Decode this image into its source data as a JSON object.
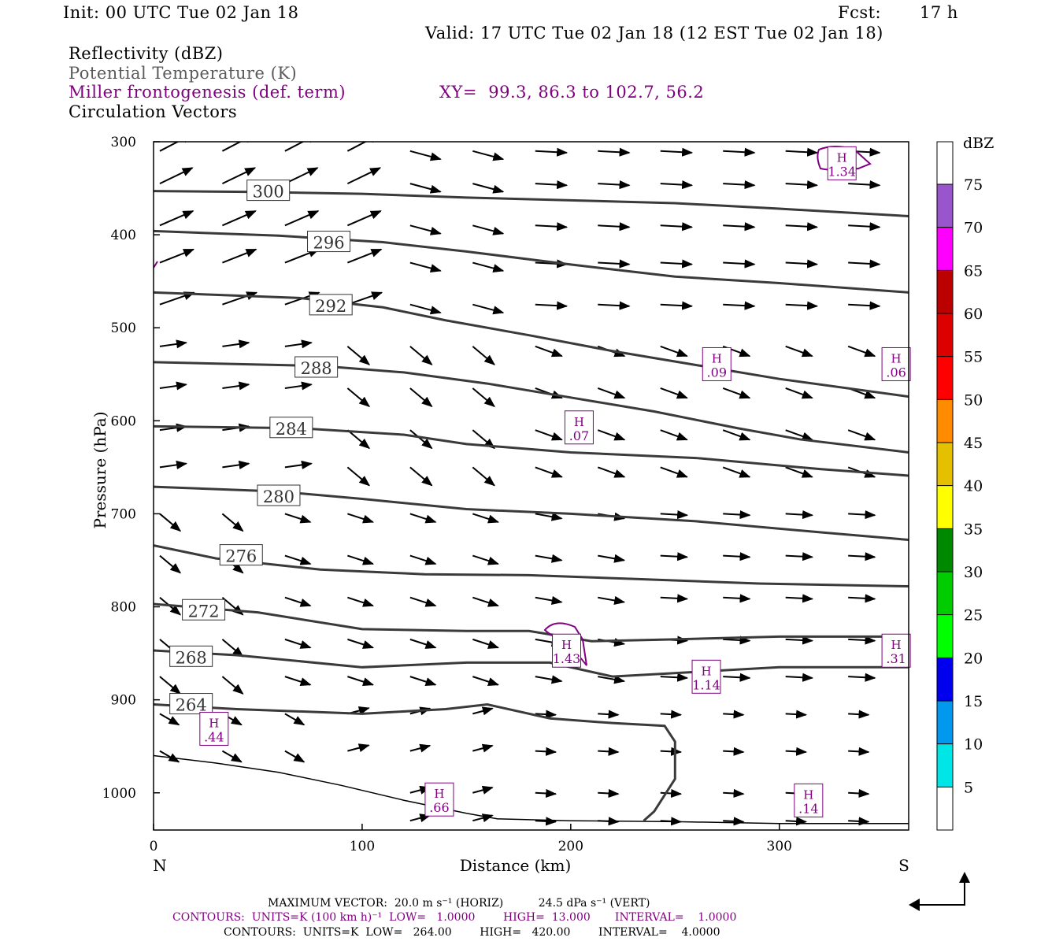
{
  "header": {
    "init": "Init: 00 UTC Tue 02 Jan 18",
    "fcst_label": "Fcst:",
    "fcst_value": "17 h",
    "valid": "Valid: 17 UTC Tue 02 Jan 18 (12 EST Tue 02 Jan 18)"
  },
  "fields": {
    "reflectivity": "Reflectivity (dBZ)",
    "theta": "Potential Temperature (K)",
    "miller": "Miller frontogenesis (def. term)",
    "xy": "XY=  99.3, 86.3 to 102.7, 56.2",
    "vectors": "Circulation Vectors"
  },
  "colors": {
    "theta_contour": "#3a3a3a",
    "frontogenesis": "#800080",
    "vectors": "#000000"
  },
  "chart_data": {
    "type": "line",
    "title": "",
    "xlabel": "Distance (km)",
    "ylabel": "Pressure (hPa)",
    "xlim": [
      0,
      362
    ],
    "ylim": [
      1040,
      300
    ],
    "x_ticks": [
      0,
      100,
      200,
      300
    ],
    "x_tick_labels": [
      "0",
      "100",
      "200",
      "300"
    ],
    "y_ticks": [
      300,
      400,
      500,
      600,
      700,
      800,
      900,
      1000
    ],
    "y_tick_labels": [
      "300",
      "400",
      "500",
      "600",
      "700",
      "800",
      "900",
      "1000"
    ],
    "left_end_label": "N",
    "right_end_label": "S",
    "theta_contours": [
      {
        "name": "300",
        "label": "300",
        "label_at": [
          55,
          353
        ],
        "points": [
          [
            0,
            353
          ],
          [
            50,
            354
          ],
          [
            100,
            356
          ],
          [
            150,
            360
          ],
          [
            200,
            363
          ],
          [
            250,
            366
          ],
          [
            300,
            372
          ],
          [
            362,
            380
          ]
        ]
      },
      {
        "name": "296",
        "label": "296",
        "label_at": [
          84,
          408
        ],
        "points": [
          [
            0,
            396
          ],
          [
            60,
            401
          ],
          [
            110,
            408
          ],
          [
            150,
            418
          ],
          [
            200,
            432
          ],
          [
            250,
            445
          ],
          [
            300,
            452
          ],
          [
            362,
            462
          ]
        ]
      },
      {
        "name": "292",
        "label": "292",
        "label_at": [
          85,
          476
        ],
        "points": [
          [
            0,
            462
          ],
          [
            70,
            468
          ],
          [
            110,
            478
          ],
          [
            140,
            492
          ],
          [
            180,
            508
          ],
          [
            220,
            525
          ],
          [
            260,
            540
          ],
          [
            300,
            555
          ],
          [
            362,
            574
          ]
        ]
      },
      {
        "name": "288",
        "label": "288",
        "label_at": [
          78,
          543
        ],
        "points": [
          [
            0,
            537
          ],
          [
            80,
            541
          ],
          [
            120,
            548
          ],
          [
            160,
            560
          ],
          [
            200,
            575
          ],
          [
            240,
            590
          ],
          [
            280,
            608
          ],
          [
            310,
            620
          ],
          [
            362,
            634
          ]
        ]
      },
      {
        "name": "284",
        "label": "284",
        "label_at": [
          66,
          608
        ],
        "points": [
          [
            0,
            606
          ],
          [
            70,
            608
          ],
          [
            120,
            615
          ],
          [
            150,
            625
          ],
          [
            200,
            634
          ],
          [
            260,
            640
          ],
          [
            320,
            652
          ],
          [
            362,
            659
          ]
        ]
      },
      {
        "name": "280",
        "label": "280",
        "label_at": [
          60,
          681
        ],
        "points": [
          [
            0,
            671
          ],
          [
            60,
            676
          ],
          [
            100,
            684
          ],
          [
            150,
            695
          ],
          [
            200,
            700
          ],
          [
            260,
            708
          ],
          [
            320,
            720
          ],
          [
            362,
            728
          ]
        ]
      },
      {
        "name": "276",
        "label": "276",
        "label_at": [
          42,
          745
        ],
        "points": [
          [
            0,
            734
          ],
          [
            30,
            748
          ],
          [
            80,
            760
          ],
          [
            130,
            765
          ],
          [
            180,
            766
          ],
          [
            230,
            770
          ],
          [
            290,
            775
          ],
          [
            362,
            778
          ]
        ]
      },
      {
        "name": "272",
        "label": "272",
        "label_at": [
          24,
          804
        ],
        "points": [
          [
            0,
            797
          ],
          [
            50,
            806
          ],
          [
            100,
            824
          ],
          [
            150,
            826
          ],
          [
            180,
            826
          ],
          [
            210,
            837
          ],
          [
            250,
            835
          ],
          [
            300,
            832
          ],
          [
            362,
            832
          ]
        ]
      },
      {
        "name": "268",
        "label": "268",
        "label_at": [
          18,
          854
        ],
        "points": [
          [
            0,
            847
          ],
          [
            40,
            852
          ],
          [
            100,
            865
          ],
          [
            150,
            860
          ],
          [
            190,
            860
          ],
          [
            220,
            875
          ],
          [
            260,
            870
          ],
          [
            300,
            865
          ],
          [
            362,
            865
          ]
        ]
      },
      {
        "name": "264",
        "label": "264",
        "label_at": [
          18,
          905
        ],
        "points": [
          [
            0,
            905
          ],
          [
            40,
            910
          ],
          [
            100,
            915
          ],
          [
            140,
            910
          ],
          [
            160,
            905
          ],
          [
            190,
            920
          ],
          [
            220,
            925
          ],
          [
            245,
            928
          ],
          [
            250,
            945
          ],
          [
            250,
            985
          ],
          [
            240,
            1020
          ],
          [
            235,
            1030
          ]
        ]
      }
    ],
    "frontogenesis_maxima": [
      {
        "label": "H",
        "value": "1.34",
        "at": [
          330,
          324
        ]
      },
      {
        "label": "H",
        "value": ".09",
        "at": [
          270,
          540
        ]
      },
      {
        "label": "H",
        "value": ".06",
        "at": [
          356,
          540
        ]
      },
      {
        "label": "H",
        "value": ".07",
        "at": [
          204,
          608
        ]
      },
      {
        "label": "H",
        "value": "1.43",
        "at": [
          198,
          848
        ]
      },
      {
        "label": "H",
        "value": ".31",
        "at": [
          356,
          848
        ]
      },
      {
        "label": "H",
        "value": "1.14",
        "at": [
          265,
          876
        ]
      },
      {
        "label": "H",
        "value": ".44",
        "at": [
          29,
          932
        ]
      },
      {
        "label": "H",
        "value": ".66",
        "at": [
          137,
          1008
        ]
      },
      {
        "label": "H",
        "value": ".14",
        "at": [
          314,
          1009
        ]
      }
    ],
    "colorbar": {
      "title": "dBZ",
      "ticks": [
        "5",
        "10",
        "15",
        "20",
        "25",
        "30",
        "35",
        "40",
        "45",
        "50",
        "55",
        "60",
        "65",
        "70",
        "75"
      ],
      "colors": [
        "#ffffff",
        "#00e5e5",
        "#0099ee",
        "#0000ee",
        "#00ff00",
        "#00cc00",
        "#008800",
        "#ffff00",
        "#e5c000",
        "#ff8c00",
        "#ff0000",
        "#dd0000",
        "#bb0000",
        "#ff00ff",
        "#9955cc",
        "#ffffff"
      ]
    }
  },
  "footer": {
    "max_vector": "MAXIMUM VECTOR:  20.0 m s⁻¹ (HORIZ)          24.5 dPa s⁻¹ (VERT)",
    "contours_purple": "CONTOURS:  UNITS=K (100 km h)⁻¹  LOW=   1.0000        HIGH=  13.000       INTERVAL=    1.0000",
    "contours_black": "CONTOURS:  UNITS=K  LOW=   264.00        HIGH=   420.00        INTERVAL=    4.0000"
  }
}
